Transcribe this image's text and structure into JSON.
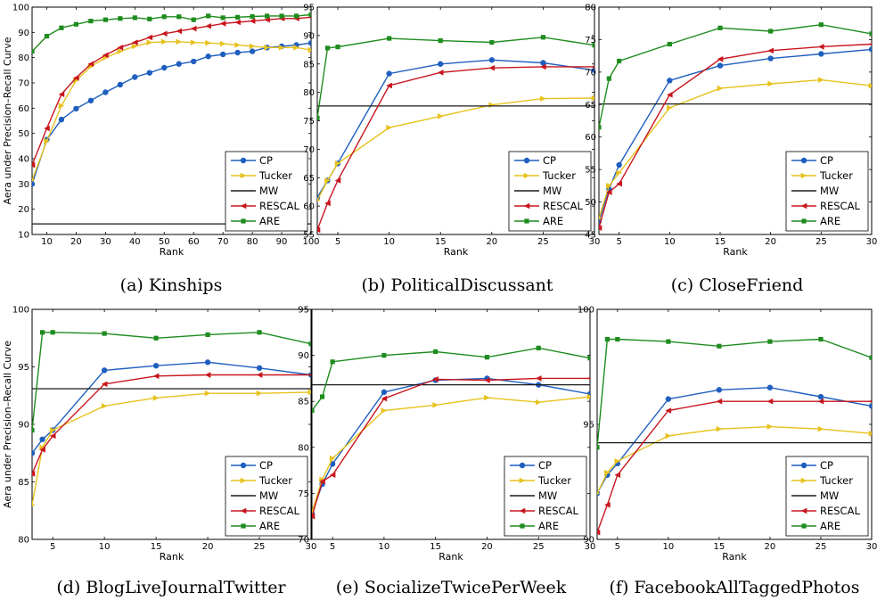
{
  "figure": {
    "ylabel": "Aera under Precision–Recall Curve",
    "xlabel": "Rank"
  },
  "colors": {
    "CP": "#1f5fbf",
    "Tucker": "#e6c21e",
    "MW": "#1a1a1a",
    "RESCAL": "#c8161e",
    "ARE": "#1e8c1e"
  },
  "chart_data": [
    {
      "type": "line",
      "caption": "(a) Kinships",
      "xlabel": "Rank",
      "ylabel": "Aera under Precision–Recall Curve",
      "xlim": [
        5,
        100
      ],
      "ylim": [
        10,
        100
      ],
      "xticks": [
        10,
        20,
        30,
        40,
        50,
        60,
        70,
        80,
        90,
        100
      ],
      "yticks": [
        10,
        20,
        30,
        40,
        50,
        60,
        70,
        80,
        90,
        100
      ],
      "legend": "bottom-right",
      "series": [
        {
          "name": "CP",
          "marker": "circle",
          "x": [
            5,
            10,
            15,
            20,
            25,
            30,
            35,
            40,
            45,
            50,
            55,
            60,
            65,
            70,
            75,
            80,
            85,
            90,
            95,
            100
          ],
          "y": [
            30,
            47.5,
            55.5,
            59.8,
            63,
            66.3,
            69.3,
            72.3,
            74,
            76,
            77.5,
            78.5,
            80.5,
            81.3,
            82,
            82.5,
            84,
            84.5,
            85,
            85.8
          ]
        },
        {
          "name": "Tucker",
          "marker": "triangle-right",
          "x": [
            5,
            10,
            15,
            20,
            25,
            30,
            35,
            40,
            45,
            50,
            55,
            60,
            65,
            70,
            75,
            80,
            85,
            90,
            95,
            100
          ],
          "y": [
            31.5,
            47,
            61,
            71,
            76.5,
            80,
            82.5,
            84.5,
            86,
            86.3,
            86.3,
            86,
            85.8,
            85.5,
            85,
            84.5,
            84,
            84,
            84,
            83
          ]
        },
        {
          "name": "MW",
          "marker": "none",
          "x": [
            5,
            100
          ],
          "y": [
            14.2,
            14.2
          ]
        },
        {
          "name": "RESCAL",
          "marker": "triangle-left",
          "x": [
            5,
            10,
            15,
            20,
            25,
            30,
            35,
            40,
            45,
            50,
            55,
            60,
            65,
            70,
            75,
            80,
            85,
            90,
            95,
            100
          ],
          "y": [
            37.5,
            52,
            65.5,
            72,
            77.5,
            81,
            84,
            86,
            88,
            89.5,
            90.5,
            91.5,
            92.5,
            93.5,
            94,
            94.5,
            95,
            95.5,
            95.5,
            96
          ]
        },
        {
          "name": "ARE",
          "marker": "square",
          "x": [
            5,
            10,
            15,
            20,
            25,
            30,
            35,
            40,
            45,
            50,
            55,
            60,
            65,
            70,
            75,
            80,
            85,
            90,
            95,
            100
          ],
          "y": [
            82.5,
            88.5,
            91.8,
            93.2,
            94.5,
            95,
            95.5,
            95.8,
            95.3,
            96.2,
            96.2,
            95,
            96.5,
            95.8,
            96,
            96.3,
            96.5,
            96.5,
            96.5,
            97
          ]
        }
      ]
    },
    {
      "type": "line",
      "caption": "(b) PoliticalDiscussant",
      "xlabel": "Rank",
      "ylabel": "",
      "xlim": [
        3,
        30
      ],
      "ylim": [
        55,
        95
      ],
      "xticks": [
        5,
        10,
        15,
        20,
        25,
        30
      ],
      "yticks": [
        55,
        60,
        65,
        70,
        75,
        80,
        85,
        90,
        95
      ],
      "legend": "bottom-right",
      "series": [
        {
          "name": "CP",
          "marker": "circle",
          "x": [
            3,
            4,
            5,
            10,
            15,
            20,
            25,
            30
          ],
          "y": [
            61.5,
            64.5,
            67.5,
            83.3,
            85,
            85.7,
            85.2,
            83.9
          ]
        },
        {
          "name": "Tucker",
          "marker": "triangle-right",
          "x": [
            3,
            4,
            5,
            10,
            15,
            20,
            25,
            30
          ],
          "y": [
            61,
            64.5,
            67.5,
            73.8,
            75.8,
            77.8,
            78.9,
            79
          ]
        },
        {
          "name": "MW",
          "marker": "none",
          "x": [
            3,
            30
          ],
          "y": [
            77.6,
            77.6
          ]
        },
        {
          "name": "RESCAL",
          "marker": "triangle-left",
          "x": [
            3,
            4,
            5,
            10,
            15,
            20,
            25,
            30
          ],
          "y": [
            55.8,
            60.5,
            64.5,
            81.2,
            83.5,
            84.3,
            84.5,
            84.5
          ]
        },
        {
          "name": "ARE",
          "marker": "square",
          "x": [
            3,
            4,
            5,
            10,
            15,
            20,
            25,
            30
          ],
          "y": [
            75.5,
            87.8,
            88,
            89.5,
            89.1,
            88.8,
            89.7,
            88.3
          ]
        }
      ]
    },
    {
      "type": "line",
      "caption": "(c) CloseFriend",
      "xlabel": "Rank",
      "ylabel": "",
      "xlim": [
        3,
        30
      ],
      "ylim": [
        45,
        80
      ],
      "xticks": [
        5,
        10,
        15,
        20,
        25,
        30
      ],
      "yticks": [
        45,
        50,
        55,
        60,
        65,
        70,
        75,
        80
      ],
      "legend": "bottom-right",
      "series": [
        {
          "name": "CP",
          "marker": "circle",
          "x": [
            3,
            4,
            5,
            10,
            15,
            20,
            25,
            30
          ],
          "y": [
            47,
            52,
            55.7,
            68.7,
            71,
            72.1,
            72.8,
            73.5
          ]
        },
        {
          "name": "Tucker",
          "marker": "triangle-right",
          "x": [
            3,
            4,
            5,
            10,
            15,
            20,
            25,
            30
          ],
          "y": [
            47.5,
            52.5,
            54.5,
            64.5,
            67.5,
            68.2,
            68.8,
            67.9
          ]
        },
        {
          "name": "MW",
          "marker": "none",
          "x": [
            3,
            30
          ],
          "y": [
            65.1,
            65.1
          ]
        },
        {
          "name": "RESCAL",
          "marker": "triangle-left",
          "x": [
            3,
            4,
            5,
            10,
            15,
            20,
            25,
            30
          ],
          "y": [
            46,
            51.5,
            52.8,
            66.5,
            72,
            73.3,
            73.9,
            74.3
          ]
        },
        {
          "name": "ARE",
          "marker": "square",
          "x": [
            3,
            4,
            5,
            10,
            15,
            20,
            25,
            30
          ],
          "y": [
            61.5,
            69,
            71.7,
            74.3,
            76.8,
            76.3,
            77.3,
            75.9
          ]
        }
      ]
    },
    {
      "type": "line",
      "caption": "(d) BlogLiveJournalTwitter",
      "xlabel": "Rank",
      "ylabel": "Aera under Precision–Recall Curve",
      "xlim": [
        3,
        30
      ],
      "ylim": [
        80,
        100
      ],
      "xticks": [
        5,
        10,
        15,
        20,
        25,
        30
      ],
      "yticks": [
        80,
        85,
        90,
        95,
        100
      ],
      "legend": "bottom-right",
      "series": [
        {
          "name": "CP",
          "marker": "circle",
          "x": [
            3,
            4,
            5,
            10,
            15,
            20,
            25,
            30
          ],
          "y": [
            87.5,
            88.7,
            89.5,
            94.7,
            95.1,
            95.4,
            94.9,
            94.3
          ]
        },
        {
          "name": "Tucker",
          "marker": "triangle-right",
          "x": [
            3,
            4,
            5,
            10,
            15,
            20,
            25,
            30
          ],
          "y": [
            83,
            88,
            89.5,
            91.6,
            92.3,
            92.7,
            92.7,
            92.8
          ]
        },
        {
          "name": "MW",
          "marker": "none",
          "x": [
            3,
            30
          ],
          "y": [
            93.1,
            93.1
          ]
        },
        {
          "name": "RESCAL",
          "marker": "triangle-left",
          "x": [
            3,
            4,
            5,
            10,
            15,
            20,
            25,
            30
          ],
          "y": [
            85.7,
            87.8,
            89,
            93.5,
            94.2,
            94.3,
            94.3,
            94.3
          ]
        },
        {
          "name": "ARE",
          "marker": "square",
          "x": [
            3,
            4,
            5,
            10,
            15,
            20,
            25,
            30
          ],
          "y": [
            89.5,
            98,
            98,
            97.9,
            97.5,
            97.8,
            98,
            97
          ]
        }
      ]
    },
    {
      "type": "line",
      "caption": "(e) SocializeTwicePerWeek",
      "xlabel": "Rank",
      "ylabel": "",
      "xlim": [
        3,
        30
      ],
      "ylim": [
        70,
        95
      ],
      "xticks": [
        5,
        10,
        15,
        20,
        25,
        30
      ],
      "yticks": [
        70,
        75,
        80,
        85,
        90,
        95
      ],
      "legend": "bottom-right",
      "series": [
        {
          "name": "CP",
          "marker": "circle",
          "x": [
            3,
            4,
            5,
            10,
            15,
            20,
            25,
            30
          ],
          "y": [
            72.8,
            76,
            78.2,
            86,
            87.3,
            87.5,
            86.8,
            85.8
          ]
        },
        {
          "name": "Tucker",
          "marker": "triangle-right",
          "x": [
            3,
            4,
            5,
            10,
            15,
            20,
            25,
            30
          ],
          "y": [
            73,
            76.5,
            78.8,
            84,
            84.6,
            85.4,
            84.9,
            85.5
          ]
        },
        {
          "name": "MW",
          "marker": "none",
          "x": [
            3,
            30
          ],
          "y": [
            86.8,
            86.8
          ]
        },
        {
          "name": "RESCAL",
          "marker": "triangle-left",
          "x": [
            3,
            4,
            5,
            10,
            15,
            20,
            25,
            30
          ],
          "y": [
            72.5,
            76.3,
            77,
            85.3,
            87.4,
            87.3,
            87.5,
            87.5
          ]
        },
        {
          "name": "ARE",
          "marker": "square",
          "x": [
            3,
            4,
            5,
            10,
            15,
            20,
            25,
            30
          ],
          "y": [
            84,
            85.5,
            89.3,
            90,
            90.4,
            89.8,
            90.8,
            89.7
          ]
        }
      ]
    },
    {
      "type": "line",
      "caption": "(f) FacebookAllTaggedPhotos",
      "xlabel": "Rank",
      "ylabel": "",
      "xlim": [
        3,
        30
      ],
      "ylim": [
        90,
        100
      ],
      "xticks": [
        5,
        10,
        15,
        20,
        25,
        30
      ],
      "yticks": [
        90,
        95,
        100
      ],
      "legend": "bottom-right",
      "series": [
        {
          "name": "CP",
          "marker": "circle",
          "x": [
            3,
            4,
            5,
            10,
            15,
            20,
            25,
            30
          ],
          "y": [
            92,
            92.8,
            93.3,
            96.1,
            96.5,
            96.6,
            96.2,
            95.8
          ]
        },
        {
          "name": "Tucker",
          "marker": "triangle-right",
          "x": [
            3,
            4,
            5,
            10,
            15,
            20,
            25,
            30
          ],
          "y": [
            92,
            92.9,
            93.4,
            94.5,
            94.8,
            94.9,
            94.8,
            94.6
          ]
        },
        {
          "name": "MW",
          "marker": "none",
          "x": [
            3,
            30
          ],
          "y": [
            94.2,
            94.2
          ]
        },
        {
          "name": "RESCAL",
          "marker": "triangle-left",
          "x": [
            3,
            4,
            5,
            10,
            15,
            20,
            25,
            30
          ],
          "y": [
            90.3,
            91.5,
            92.8,
            95.6,
            96,
            96,
            96,
            96
          ]
        },
        {
          "name": "ARE",
          "marker": "square",
          "x": [
            3,
            4,
            5,
            10,
            15,
            20,
            25,
            30
          ],
          "y": [
            94,
            98.7,
            98.7,
            98.6,
            98.4,
            98.6,
            98.7,
            97.9
          ]
        }
      ]
    }
  ]
}
